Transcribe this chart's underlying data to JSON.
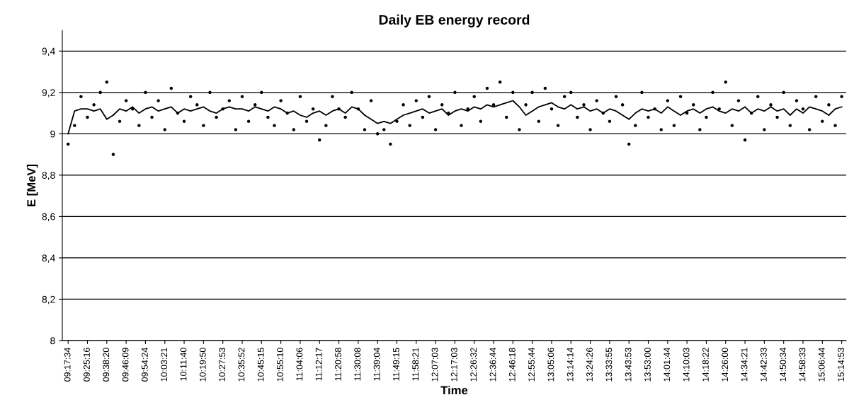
{
  "chart_data": {
    "type": "scatter",
    "title": "Daily EB energy record",
    "xlabel": "Time",
    "ylabel": "E [MeV]",
    "categories": [
      "09:17:34",
      null,
      null,
      "09:25:16",
      null,
      null,
      "09:38:20",
      null,
      null,
      "09:46:09",
      null,
      null,
      "09:54:24",
      null,
      null,
      "10:03:21",
      null,
      null,
      "10:11:40",
      null,
      null,
      "10:19:50",
      null,
      null,
      "10:27:53",
      null,
      null,
      "10:35:52",
      null,
      null,
      "10:45:15",
      null,
      null,
      "10:55:10",
      null,
      null,
      "11:04:06",
      null,
      null,
      "11:12:17",
      null,
      null,
      "11:20:58",
      null,
      null,
      "11:30:08",
      null,
      null,
      "11:39:04",
      null,
      null,
      "11:49:15",
      null,
      null,
      "11:58:21",
      null,
      null,
      "12:07:03",
      null,
      null,
      "12:17:03",
      null,
      null,
      "12:26:32",
      null,
      null,
      "12:36:44",
      null,
      null,
      "12:46:18",
      null,
      null,
      "12:55:44",
      null,
      null,
      "13:05:06",
      null,
      null,
      "13:14:14",
      null,
      null,
      "13:24:26",
      null,
      null,
      "13:33:55",
      null,
      null,
      "13:43:53",
      null,
      null,
      "13:53:00",
      null,
      null,
      "14:01:44",
      null,
      null,
      "14:10:03",
      null,
      null,
      "14:18:22",
      null,
      null,
      "14:26:00",
      null,
      null,
      "14:34:21",
      null,
      null,
      "14:42:33",
      null,
      null,
      "14:50:34",
      null,
      null,
      "14:58:33",
      null,
      null,
      "15:06:44",
      null,
      null,
      "15:14:53"
    ],
    "series": [
      {
        "color": "#000000",
        "marker": "circle",
        "values": [
          8.95,
          9.04,
          9.18,
          9.08,
          9.14,
          9.2,
          9.25,
          8.9,
          9.06,
          9.16,
          9.12,
          9.04,
          9.2,
          9.08,
          9.16,
          9.02,
          9.22,
          9.1,
          9.06,
          9.18,
          9.14,
          9.04,
          9.2,
          9.08,
          9.12,
          9.16,
          9.02,
          9.18,
          9.06,
          9.14,
          9.2,
          9.08,
          9.04,
          9.16,
          9.1,
          9.02,
          9.18,
          9.06,
          9.12,
          8.97,
          9.04,
          9.18,
          9.12,
          9.08,
          9.2,
          9.12,
          9.02,
          9.16,
          9.0,
          9.02,
          8.95,
          9.06,
          9.14,
          9.04,
          9.16,
          9.08,
          9.18,
          9.02,
          9.14,
          9.1,
          9.2,
          9.04,
          9.12,
          9.18,
          9.06,
          9.22,
          9.14,
          9.25,
          9.08,
          9.2,
          9.02,
          9.14,
          9.2,
          9.06,
          9.22,
          9.12,
          9.04,
          9.18,
          9.2,
          9.08,
          9.14,
          9.02,
          9.16,
          9.1,
          9.06,
          9.18,
          9.14,
          8.95,
          9.04,
          9.2,
          9.08,
          9.12,
          9.02,
          9.16,
          9.04,
          9.18,
          9.1,
          9.14,
          9.02,
          9.08,
          9.2,
          9.12,
          9.25,
          9.04,
          9.16,
          8.97,
          9.1,
          9.18,
          9.02,
          9.14,
          9.08,
          9.2,
          9.04,
          9.16,
          9.12,
          9.02,
          9.18,
          9.06,
          9.14,
          9.04,
          9.18
        ]
      },
      {
        "type": "line",
        "color": "#000000",
        "marker": "none",
        "line_style": "solid",
        "values": [
          9.0,
          9.11,
          9.12,
          9.12,
          9.11,
          9.12,
          9.07,
          9.09,
          9.12,
          9.11,
          9.13,
          9.1,
          9.12,
          9.13,
          9.11,
          9.12,
          9.13,
          9.1,
          9.12,
          9.11,
          9.12,
          9.13,
          9.11,
          9.1,
          9.12,
          9.13,
          9.12,
          9.12,
          9.11,
          9.13,
          9.12,
          9.11,
          9.13,
          9.12,
          9.1,
          9.11,
          9.09,
          9.08,
          9.1,
          9.11,
          9.09,
          9.11,
          9.12,
          9.1,
          9.13,
          9.12,
          9.09,
          9.07,
          9.05,
          9.06,
          9.05,
          9.07,
          9.09,
          9.1,
          9.11,
          9.12,
          9.1,
          9.11,
          9.12,
          9.09,
          9.11,
          9.12,
          9.11,
          9.13,
          9.12,
          9.14,
          9.13,
          9.14,
          9.15,
          9.16,
          9.13,
          9.09,
          9.11,
          9.13,
          9.14,
          9.15,
          9.13,
          9.12,
          9.14,
          9.12,
          9.13,
          9.11,
          9.12,
          9.1,
          9.12,
          9.11,
          9.09,
          9.07,
          9.1,
          9.12,
          9.11,
          9.12,
          9.1,
          9.13,
          9.11,
          9.09,
          9.11,
          9.12,
          9.1,
          9.12,
          9.13,
          9.11,
          9.1,
          9.12,
          9.11,
          9.13,
          9.1,
          9.12,
          9.11,
          9.13,
          9.11,
          9.12,
          9.09,
          9.12,
          9.1,
          9.13,
          9.12,
          9.11,
          9.09,
          9.12,
          9.13
        ]
      }
    ],
    "ylim": [
      8,
      9.5
    ],
    "yticks": [
      8,
      {
        "value": 8.2,
        "label": "8,2"
      },
      {
        "value": 8.4,
        "label": "8,4"
      },
      {
        "value": 8.6,
        "label": "8,6"
      },
      {
        "value": 8.8,
        "label": "8,8"
      },
      9,
      {
        "value": 9.2,
        "label": "9,2"
      },
      {
        "value": 9.4,
        "label": "9,4"
      }
    ],
    "grid": "y",
    "legend": false
  }
}
